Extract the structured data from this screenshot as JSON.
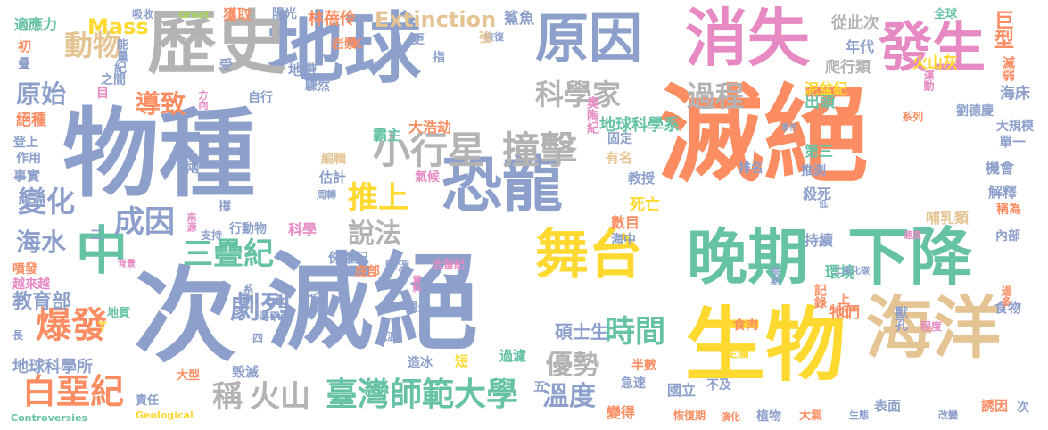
{
  "colors": {
    "background": "#ffffff",
    "palette": [
      "#8da0cb",
      "#fc8d62",
      "#66c2a5",
      "#e78ac3",
      "#ffd92f",
      "#a6d854",
      "#e5c494",
      "#b3b3b3"
    ]
  },
  "words": [
    {
      "text": "滅絕",
      "color": "#fc8d62"
    },
    {
      "text": "物種",
      "color": "#8da0cb"
    },
    {
      "text": "次",
      "color": "#8da0cb"
    },
    {
      "text": "滅絕",
      "color": "#8da0cb"
    },
    {
      "text": "地球",
      "color": "#8da0cb"
    },
    {
      "text": "歷史",
      "color": "#b3b3b3"
    },
    {
      "text": "消失",
      "color": "#e78ac3"
    },
    {
      "text": "原因",
      "color": "#8da0cb"
    },
    {
      "text": "發生",
      "color": "#e78ac3"
    },
    {
      "text": "恐龍",
      "color": "#8da0cb"
    },
    {
      "text": "生物",
      "color": "#ffd92f"
    },
    {
      "text": "海洋",
      "color": "#e5c494"
    },
    {
      "text": "晚期",
      "color": "#66c2a5"
    },
    {
      "text": "舞台",
      "color": "#ffd92f"
    },
    {
      "text": "下降",
      "color": "#66c2a5"
    },
    {
      "text": "中",
      "color": "#66c2a5"
    },
    {
      "text": "小行星",
      "color": "#b3b3b3"
    },
    {
      "text": "撞擊",
      "color": "#b3b3b3"
    },
    {
      "text": "科學家",
      "color": "#b3b3b3"
    },
    {
      "text": "過程",
      "color": "#b3b3b3"
    },
    {
      "text": "動物",
      "color": "#e5c494"
    },
    {
      "text": "導致",
      "color": "#fc8d62"
    },
    {
      "text": "原始",
      "color": "#8da0cb"
    },
    {
      "text": "變化",
      "color": "#8da0cb"
    },
    {
      "text": "海水",
      "color": "#8da0cb"
    },
    {
      "text": "成因",
      "color": "#8da0cb"
    },
    {
      "text": "推上",
      "color": "#ffd92f"
    },
    {
      "text": "說法",
      "color": "#b3b3b3"
    },
    {
      "text": "三疊紀",
      "color": "#66c2a5"
    },
    {
      "text": "劇烈",
      "color": "#8da0cb"
    },
    {
      "text": "爆發",
      "color": "#fc8d62"
    },
    {
      "text": "白堊紀",
      "color": "#fc8d62"
    },
    {
      "text": "時間",
      "color": "#66c2a5"
    },
    {
      "text": "優勢",
      "color": "#b3b3b3"
    },
    {
      "text": "臺灣師範大學",
      "color": "#66c2a5"
    },
    {
      "text": "溫度",
      "color": "#8da0cb"
    },
    {
      "text": "稱",
      "color": "#b3b3b3"
    },
    {
      "text": "火山",
      "color": "#b3b3b3"
    },
    {
      "text": "Extinction",
      "color": "#e5c494"
    },
    {
      "text": "Mass",
      "color": "#ffd92f"
    },
    {
      "text": "林蓓伶",
      "color": "#fc8d62"
    },
    {
      "text": "教育部",
      "color": "#8da0cb"
    },
    {
      "text": "地球科學所",
      "color": "#8da0cb"
    },
    {
      "text": "碩士生",
      "color": "#8da0cb"
    },
    {
      "text": "地球科學系",
      "color": "#66c2a5"
    },
    {
      "text": "大浩劫",
      "color": "#fc8d62"
    },
    {
      "text": "霸主",
      "color": "#66c2a5"
    },
    {
      "text": "絕種",
      "color": "#fc8d62"
    },
    {
      "text": "適應力",
      "color": "#66c2a5"
    },
    {
      "text": "獲取",
      "color": "#fc8d62"
    },
    {
      "text": "陽光",
      "color": "#8da0cb"
    },
    {
      "text": "鯊魚",
      "color": "#8da0cb"
    },
    {
      "text": "從此次",
      "color": "#b3b3b3"
    },
    {
      "text": "全球",
      "color": "#66c2a5"
    },
    {
      "text": "巨型",
      "color": "#fc8d62"
    },
    {
      "text": "年代",
      "color": "#8da0cb"
    },
    {
      "text": "爬行類",
      "color": "#b3b3b3"
    },
    {
      "text": "火山灰",
      "color": "#ffd92f"
    },
    {
      "text": "滅弱",
      "color": "#fc8d62"
    },
    {
      "text": "泥盆紀",
      "color": "#ffd92f"
    },
    {
      "text": "運動",
      "color": "#e78ac3"
    },
    {
      "text": "海床",
      "color": "#8da0cb"
    },
    {
      "text": "出頭",
      "color": "#66c2a5"
    },
    {
      "text": "劉德慶",
      "color": "#8da0cb"
    },
    {
      "text": "大規模",
      "color": "#8da0cb"
    },
    {
      "text": "單一",
      "color": "#8da0cb"
    },
    {
      "text": "第三",
      "color": "#66c2a5"
    },
    {
      "text": "機會",
      "color": "#8da0cb"
    },
    {
      "text": "解釋",
      "color": "#8da0cb"
    },
    {
      "text": "稱為",
      "color": "#fc8d62"
    },
    {
      "text": "內部",
      "color": "#8da0cb"
    },
    {
      "text": "殺死",
      "color": "#8da0cb"
    },
    {
      "text": "死亡",
      "color": "#ffd92f"
    },
    {
      "text": "數目",
      "color": "#fc8d62"
    },
    {
      "text": "哺乳類",
      "color": "#e5c494"
    },
    {
      "text": "持續",
      "color": "#8da0cb"
    },
    {
      "text": "環境",
      "color": "#66c2a5"
    },
    {
      "text": "記錄",
      "color": "#fc8d62"
    },
    {
      "text": "上近",
      "color": "#fc8d62"
    },
    {
      "text": "牠們",
      "color": "#fc8d62"
    },
    {
      "text": "獸孔",
      "color": "#8da0cb"
    },
    {
      "text": "食物",
      "color": "#8da0cb"
    },
    {
      "text": "二氧化碳",
      "color": "#8da0cb"
    },
    {
      "text": "過多",
      "color": "#fc8d62"
    },
    {
      "text": "程度",
      "color": "#e78ac3"
    },
    {
      "text": "食肉",
      "color": "#fc8d62"
    },
    {
      "text": "過濾",
      "color": "#66c2a5"
    },
    {
      "text": "半數",
      "color": "#fc8d62"
    },
    {
      "text": "急速",
      "color": "#8da0cb"
    },
    {
      "text": "定論",
      "color": "#ffd92f"
    },
    {
      "text": "國立",
      "color": "#8da0cb"
    },
    {
      "text": "不及",
      "color": "#8da0cb"
    },
    {
      "text": "變得",
      "color": "#fc8d62"
    },
    {
      "text": "恢復期",
      "color": "#fc8d62"
    },
    {
      "text": "演化",
      "color": "#fc8d62"
    },
    {
      "text": "植物",
      "color": "#8da0cb"
    },
    {
      "text": "大氣",
      "color": "#fc8d62"
    },
    {
      "text": "生態",
      "color": "#8da0cb"
    },
    {
      "text": "表面",
      "color": "#8da0cb"
    },
    {
      "text": "誘因",
      "color": "#fc8d62"
    },
    {
      "text": "改變",
      "color": "#8da0cb"
    },
    {
      "text": "次",
      "color": "#8da0cb"
    },
    {
      "text": "Controversies",
      "color": "#66c2a5"
    },
    {
      "text": "Geological",
      "color": "#ffd92f"
    },
    {
      "text": "Great",
      "color": "#a6d854"
    },
    {
      "text": "責任",
      "color": "#8da0cb"
    },
    {
      "text": "毀滅",
      "color": "#8da0cb"
    },
    {
      "text": "大型",
      "color": "#fc8d62"
    },
    {
      "text": "長",
      "color": "#8da0cb"
    },
    {
      "text": "地質",
      "color": "#66c2a5"
    },
    {
      "text": "越來越",
      "color": "#e78ac3"
    },
    {
      "text": "噴發",
      "color": "#fc8d62"
    },
    {
      "text": "背景",
      "color": "#e78ac3"
    },
    {
      "text": "支持",
      "color": "#8da0cb"
    },
    {
      "text": "行動物",
      "color": "#8da0cb"
    },
    {
      "text": "科學",
      "color": "#e78ac3"
    },
    {
      "text": "侏羅紀",
      "color": "#8da0cb"
    },
    {
      "text": "紀末",
      "color": "#8da0cb"
    },
    {
      "text": "底部",
      "color": "#fc8d62"
    },
    {
      "text": "降溫",
      "color": "#8da0cb"
    },
    {
      "text": "志留紀",
      "color": "#e78ac3"
    },
    {
      "text": "海中",
      "color": "#8da0cb"
    },
    {
      "text": "教授",
      "color": "#8da0cb"
    },
    {
      "text": "固定",
      "color": "#8da0cb"
    },
    {
      "text": "有名",
      "color": "#e5c494"
    },
    {
      "text": "氣候",
      "color": "#e78ac3"
    },
    {
      "text": "估計",
      "color": "#8da0cb"
    },
    {
      "text": "編輯",
      "color": "#e5c494"
    },
    {
      "text": "恢復",
      "color": "#8da0cb"
    },
    {
      "text": "奧陶紀",
      "color": "#e78ac3"
    },
    {
      "text": "事實",
      "color": "#8da0cb"
    },
    {
      "text": "作用",
      "color": "#8da0cb"
    },
    {
      "text": "登上",
      "color": "#8da0cb"
    },
    {
      "text": "兩",
      "color": "#8da0cb"
    },
    {
      "text": "撐",
      "color": "#8da0cb"
    },
    {
      "text": "來源",
      "color": "#e78ac3"
    },
    {
      "text": "周轉",
      "color": "#8da0cb"
    },
    {
      "text": "地帶",
      "color": "#8da0cb"
    },
    {
      "text": "驟然",
      "color": "#8da0cb"
    },
    {
      "text": "岩漿",
      "color": "#fc8d62"
    },
    {
      "text": "指",
      "color": "#8da0cb"
    },
    {
      "text": "更",
      "color": "#8da0cb"
    },
    {
      "text": "強",
      "color": "#e5c494"
    },
    {
      "text": "自行",
      "color": "#8da0cb"
    },
    {
      "text": "之間",
      "color": "#8da0cb"
    },
    {
      "text": "目",
      "color": "#e78ac3"
    },
    {
      "text": "能量",
      "color": "#8da0cb"
    },
    {
      "text": "受",
      "color": "#8da0cb"
    },
    {
      "text": "吸收",
      "color": "#8da0cb"
    },
    {
      "text": "初",
      "color": "#fc8d62"
    },
    {
      "text": "疊",
      "color": "#8da0cb"
    },
    {
      "text": "紀",
      "color": "#8da0cb"
    },
    {
      "text": "方向",
      "color": "#e78ac3"
    },
    {
      "text": "K",
      "color": "#fc8d62"
    },
    {
      "text": "T",
      "color": "#ffd92f"
    },
    {
      "text": "big",
      "color": "#8da0cb"
    },
    {
      "text": "海平面",
      "color": "#8da0cb"
    },
    {
      "text": "損失",
      "color": "#8da0cb"
    },
    {
      "text": "系統",
      "color": "#8da0cb"
    },
    {
      "text": "四",
      "color": "#8da0cb"
    },
    {
      "text": "氣溫",
      "color": "#8da0cb"
    },
    {
      "text": "造冰",
      "color": "#8da0cb"
    },
    {
      "text": "短",
      "color": "#ffd92f"
    },
    {
      "text": "五",
      "color": "#8da0cb"
    },
    {
      "text": "資料",
      "color": "#e78ac3"
    },
    {
      "text": "二",
      "color": "#8da0cb"
    },
    {
      "text": "推測",
      "color": "#8da0cb"
    },
    {
      "text": "排名",
      "color": "#8da0cb"
    },
    {
      "text": "長期",
      "color": "#8da0cb"
    },
    {
      "text": "速度",
      "color": "#e78ac3"
    },
    {
      "text": "低",
      "color": "#8da0cb"
    },
    {
      "text": "事件",
      "color": "#8da0cb"
    },
    {
      "text": "系列",
      "color": "#fc8d62"
    }
  ]
}
